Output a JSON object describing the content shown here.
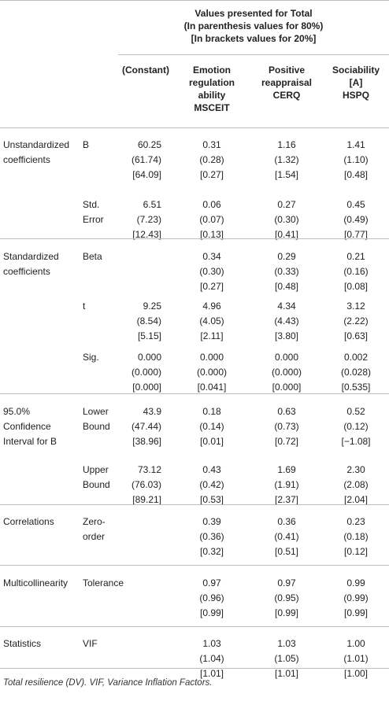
{
  "header": {
    "title_lines": [
      "Values presented for Total",
      "(In parenthesis values for 80%)",
      "[In brackets values for 20%]"
    ],
    "columns": [
      {
        "lines": [
          "(Constant)"
        ]
      },
      {
        "lines": [
          "Emotion",
          "regulation",
          "ability",
          "MSCEIT"
        ]
      },
      {
        "lines": [
          "Positive",
          "reappraisal",
          "CERQ"
        ]
      },
      {
        "lines": [
          "Sociability",
          "[A]",
          "HSPQ"
        ]
      }
    ]
  },
  "groups": [
    {
      "label_lines": [
        "Unstandardized",
        "coefficients"
      ],
      "rows": [
        {
          "sub_lines": [
            "B"
          ],
          "cells": [
            [
              "60.25",
              "(61.74)",
              "[64.09]"
            ],
            [
              "0.31",
              "(0.28)",
              "[0.27]"
            ],
            [
              "1.16",
              "(1.32)",
              "[1.54]"
            ],
            [
              "1.41",
              "(1.10)",
              "[0.48]"
            ]
          ]
        },
        {
          "sub_lines": [
            "Std.",
            "Error"
          ],
          "cells": [
            [
              "6.51",
              "(7.23)",
              "[12.43]"
            ],
            [
              "0.06",
              "(0.07)",
              "[0.13]"
            ],
            [
              "0.27",
              "(0.30)",
              "[0.41]"
            ],
            [
              "0.45",
              "(0.49)",
              "[0.77]"
            ]
          ]
        }
      ]
    },
    {
      "label_lines": [
        "Standardized",
        "coefficients"
      ],
      "rows": [
        {
          "sub_lines": [
            "Beta"
          ],
          "cells": [
            [],
            [
              "0.34",
              "(0.30)",
              "[0.27]"
            ],
            [
              "0.29",
              "(0.33)",
              "[0.48]"
            ],
            [
              "0.21",
              "(0.16)",
              "[0.08]"
            ]
          ]
        },
        {
          "sub_lines": [
            "t"
          ],
          "cells": [
            [
              "9.25",
              "(8.54)",
              "[5.15]"
            ],
            [
              "4.96",
              "(4.05)",
              "[2.11]"
            ],
            [
              "4.34",
              "(4.43)",
              "[3.80]"
            ],
            [
              "3.12",
              "(2.22)",
              "[0.63]"
            ]
          ]
        },
        {
          "sub_lines": [
            "Sig."
          ],
          "cells": [
            [
              "0.000",
              "(0.000)",
              "[0.000]"
            ],
            [
              "0.000",
              "(0.000)",
              "[0.041]"
            ],
            [
              "0.000",
              "(0.000)",
              "[0.000]"
            ],
            [
              "0.002",
              "(0.028)",
              "[0.535]"
            ]
          ]
        }
      ]
    },
    {
      "label_lines": [
        "95.0%",
        "Confidence",
        "Interval for B"
      ],
      "rows": [
        {
          "sub_lines": [
            "Lower",
            "Bound"
          ],
          "cells": [
            [
              "43.9",
              "(47.44)",
              "[38.96]"
            ],
            [
              "0.18",
              "(0.14)",
              "[0.01]"
            ],
            [
              "0.63",
              "(0.73)",
              "[0.72]"
            ],
            [
              "0.52",
              "(0.12)",
              "[−1.08]"
            ]
          ]
        },
        {
          "sub_lines": [
            "Upper",
            "Bound"
          ],
          "cells": [
            [
              "73.12",
              "(76.03)",
              "[89.21]"
            ],
            [
              "0.43",
              "(0.42)",
              "[0.53]"
            ],
            [
              "1.69",
              "(1.91)",
              "[2.37]"
            ],
            [
              "2.30",
              "(2.08)",
              "[2.04]"
            ]
          ]
        }
      ]
    },
    {
      "label_lines": [
        "Correlations"
      ],
      "rows": [
        {
          "sub_lines": [
            "Zero-",
            "order"
          ],
          "cells": [
            [],
            [
              "0.39",
              "(0.36)",
              "[0.32]"
            ],
            [
              "0.36",
              "(0.41)",
              "[0.51]"
            ],
            [
              "0.23",
              "(0.18)",
              "[0.12]"
            ]
          ]
        }
      ]
    },
    {
      "label_lines": [
        "Multicollinearity"
      ],
      "rows": [
        {
          "sub_lines": [
            "Tolerance"
          ],
          "cells": [
            [],
            [
              "0.97",
              "(0.96)",
              "[0.99]"
            ],
            [
              "0.97",
              "(0.95)",
              "[0.99]"
            ],
            [
              "0.99",
              "(0.99)",
              "[0.99]"
            ]
          ]
        }
      ]
    },
    {
      "label_lines": [
        "Statistics"
      ],
      "rows": [
        {
          "sub_lines": [
            "VIF"
          ],
          "cells": [
            [],
            [
              "1.03",
              "(1.04)",
              "[1.01]"
            ],
            [
              "1.03",
              "(1.05)",
              "[1.01]"
            ],
            [
              "1.00",
              "(1.01)",
              "[1.00]"
            ]
          ]
        }
      ]
    }
  ],
  "caption": "Total resilience (DV). VIF, Variance Inflation Factors."
}
